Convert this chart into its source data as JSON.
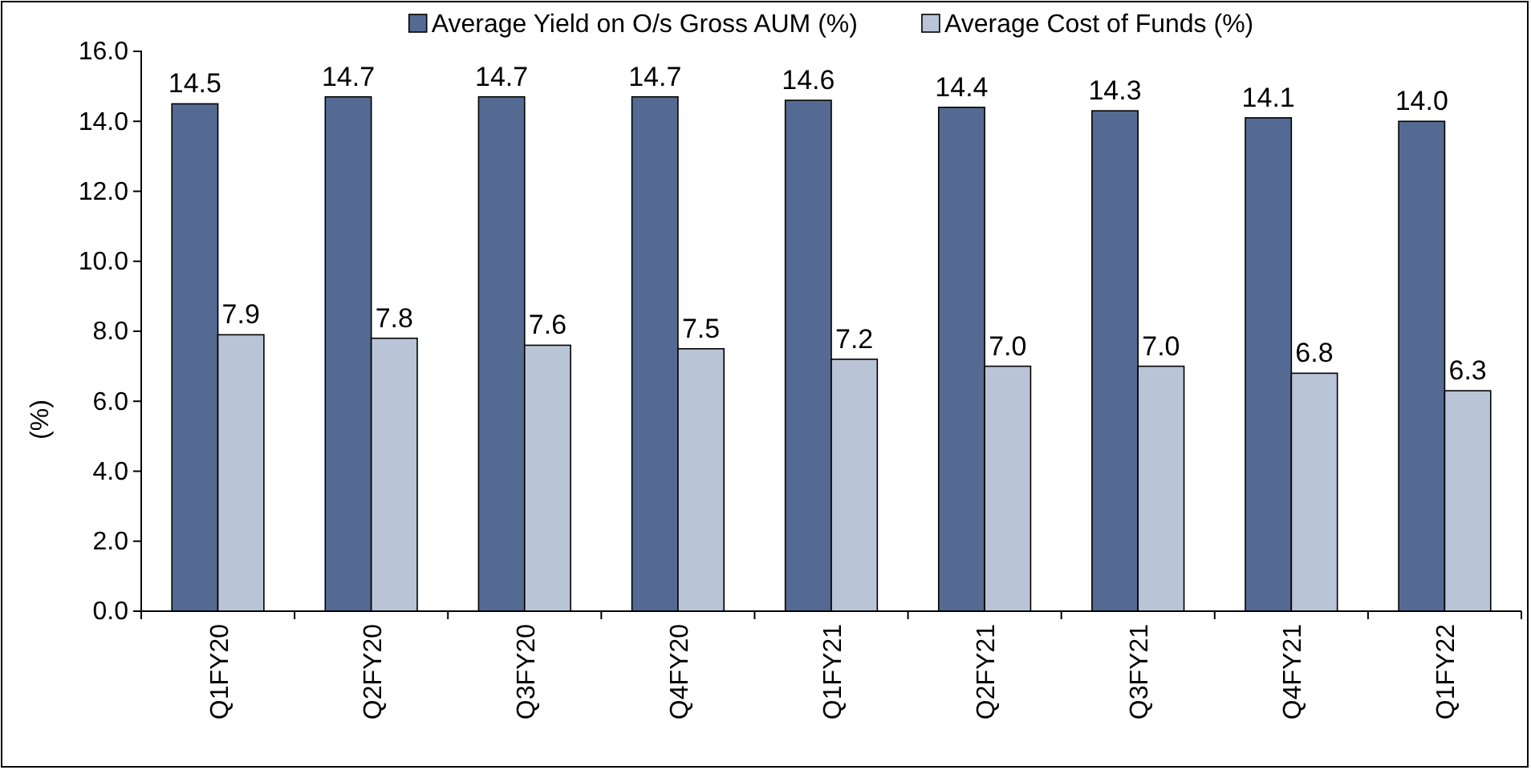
{
  "chart_data": {
    "type": "bar",
    "categories": [
      "Q1FY20",
      "Q2FY20",
      "Q3FY20",
      "Q4FY20",
      "Q1FY21",
      "Q2FY21",
      "Q3FY21",
      "Q4FY21",
      "Q1FY22"
    ],
    "series": [
      {
        "name": "Average Yield on O/s Gross AUM (%)",
        "color": "#556a92",
        "values": [
          14.5,
          14.7,
          14.7,
          14.7,
          14.6,
          14.4,
          14.3,
          14.1,
          14.0
        ],
        "value_labels": [
          "14.5",
          "14.7",
          "14.7",
          "14.7",
          "14.6",
          "14.4",
          "14.3",
          "14.1",
          "14.0"
        ]
      },
      {
        "name": "Average Cost of Funds (%)",
        "color": "#b9c4d7",
        "values": [
          7.9,
          7.8,
          7.6,
          7.5,
          7.2,
          7.0,
          7.0,
          6.8,
          6.3
        ],
        "value_labels": [
          "7.9",
          "7.8",
          "7.6",
          "7.5",
          "7.2",
          "7.0",
          "7.0",
          "6.8",
          "6.3"
        ]
      }
    ],
    "ylabel": "(%)",
    "ylim": [
      0,
      16
    ],
    "yticks": [
      {
        "value": 0,
        "label": "0.0"
      },
      {
        "value": 2,
        "label": "2.0"
      },
      {
        "value": 4,
        "label": "4.0"
      },
      {
        "value": 6,
        "label": "6.0"
      },
      {
        "value": 8,
        "label": "8.0"
      },
      {
        "value": 10,
        "label": "10.0"
      },
      {
        "value": 12,
        "label": "12.0"
      },
      {
        "value": 14,
        "label": "14.0"
      },
      {
        "value": 16,
        "label": "16.0"
      }
    ],
    "legend": "top",
    "grid": false
  }
}
